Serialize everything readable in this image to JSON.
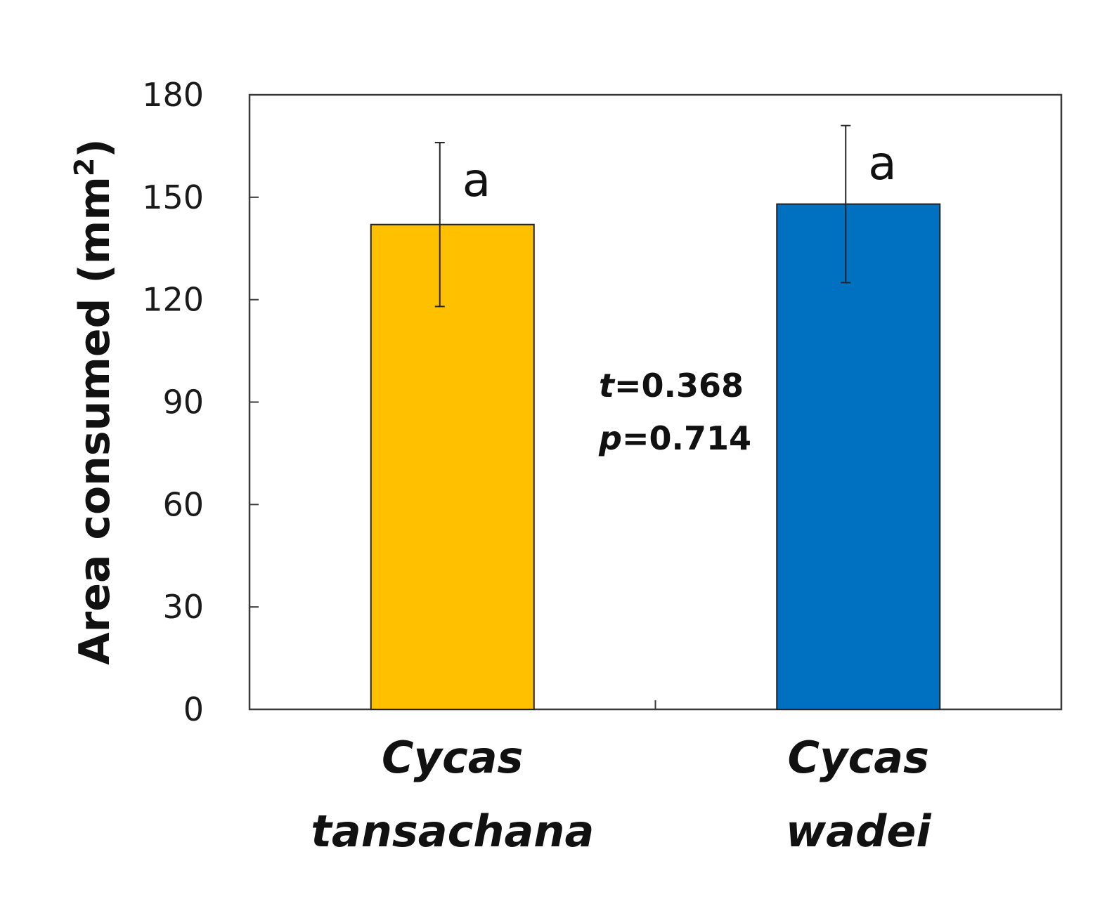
{
  "chart_data": {
    "type": "bar",
    "title": "",
    "xlabel": "",
    "ylabel": "Area consumed (mm",
    "ylabel_superscript": "2",
    "ylabel_close": ")",
    "ylim": [
      0,
      180
    ],
    "yticks": [
      0,
      30,
      60,
      90,
      120,
      150,
      180
    ],
    "grid": false,
    "categories": [
      {
        "line1": "Cycas",
        "line2": "tansachana"
      },
      {
        "line1": "Cycas",
        "line2": "wadei"
      }
    ],
    "values": [
      142,
      148
    ],
    "error_high": [
      166,
      171
    ],
    "error_low": [
      118,
      125
    ],
    "significance_letters": [
      "a",
      "a"
    ],
    "colors": [
      "#FFC000",
      "#0070C0"
    ],
    "statistics": {
      "t_symbol": "t",
      "t_value": "=0.368",
      "p_symbol": "p",
      "p_value": "=0.714"
    }
  }
}
